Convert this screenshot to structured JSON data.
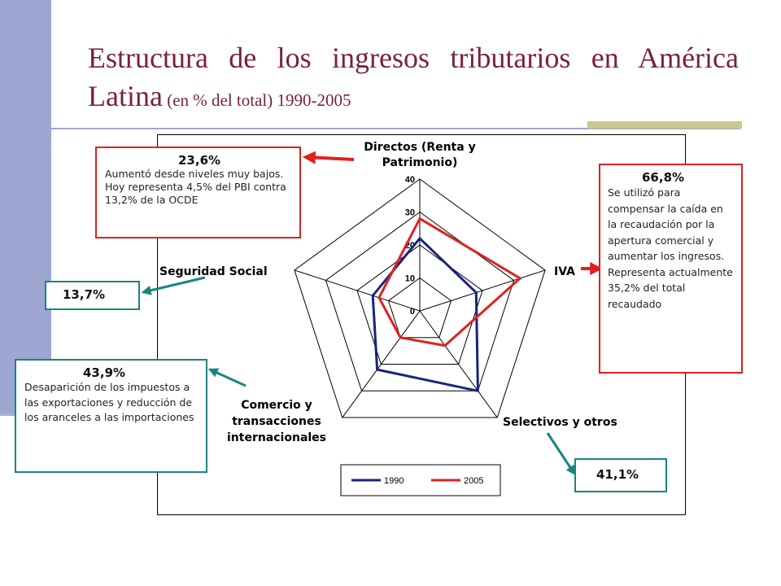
{
  "title": {
    "main": "Estructura de los ingresos tributarios en América Latina",
    "sub": " (en % del total) 1990-2005"
  },
  "colors": {
    "title": "#7a1f3f",
    "red": "#e02020",
    "teal": "#19857f",
    "navy": "#1a237e"
  },
  "chart_data": {
    "type": "radar",
    "axes": [
      "Directos (Renta y Patrimonio)",
      "IVA",
      "Selectivos y otros",
      "Comercio y transacciones internacionales",
      "Seguridad Social"
    ],
    "rmax": 40,
    "ticks": [
      0,
      10,
      20,
      30,
      40
    ],
    "series": [
      {
        "name": "1990",
        "color": "#1a237e",
        "values": [
          22,
          18,
          30,
          22,
          15
        ]
      },
      {
        "name": "2005",
        "color": "#e02020",
        "values": [
          28,
          32,
          13,
          10,
          13
        ]
      }
    ],
    "legend": "bottom"
  },
  "callouts": {
    "directos": {
      "value": "23,6%",
      "text": "Aumentó desde niveles muy bajos. Hoy representa 4,5% del PBI contra 13,2% de la OCDE"
    },
    "iva": {
      "value": "66,8%",
      "text": "Se utilizó para compensar la caída en la recaudación por la apertura comercial y aumentar los ingresos. Representa actualmente 35,2% del total recaudado"
    },
    "seguridad": {
      "value": "13,7%"
    },
    "comercio": {
      "value": "43,9%",
      "text": "Desaparición de los impuestos a las exportaciones y reducción de los aranceles a las importaciones"
    },
    "selectivos": {
      "value": "41,1%"
    }
  }
}
